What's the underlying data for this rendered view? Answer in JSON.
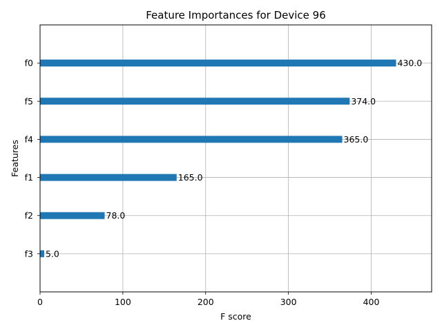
{
  "chart_data": {
    "type": "bar",
    "orientation": "horizontal",
    "title": "Feature Importances for Device 96",
    "xlabel": "F score",
    "ylabel": "Features",
    "categories": [
      "f3",
      "f2",
      "f1",
      "f4",
      "f5",
      "f0"
    ],
    "values": [
      5.0,
      78.0,
      165.0,
      365.0,
      374.0,
      430.0
    ],
    "data_labels": [
      "5.0",
      "78.0",
      "165.0",
      "365.0",
      "374.0",
      "430.0"
    ],
    "xlim": [
      0,
      473
    ],
    "xticks": [
      0,
      100,
      200,
      300,
      400
    ],
    "grid": true,
    "bar_color": "#1f77b4"
  }
}
